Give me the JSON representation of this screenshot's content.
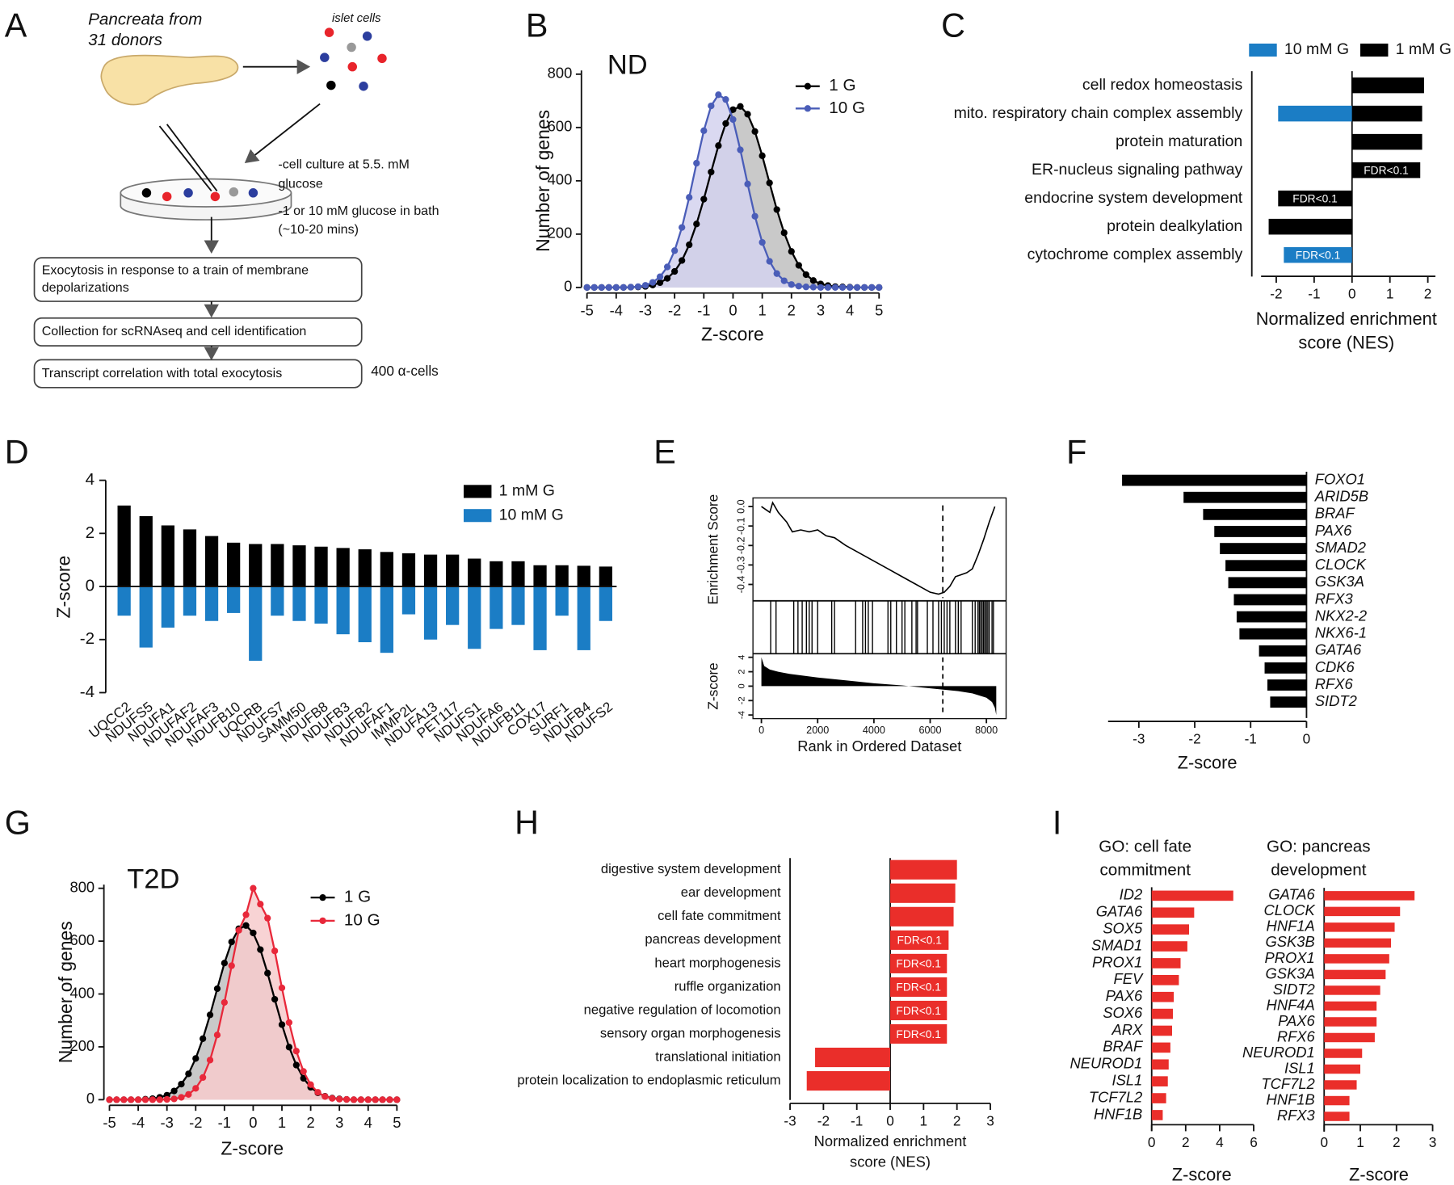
{
  "diagram": {
    "panel": "A",
    "source_lines": [
      "Pancreata from",
      "31 donors"
    ],
    "islet_label": "islet cells",
    "culture_lines": [
      "-cell culture at 5.5. mM",
      "glucose"
    ],
    "bath_lines": [
      "-1 or 10 mM glucose in bath",
      "(~10-20 mins)"
    ],
    "steps": [
      [
        "Exocytosis in response to a train of membrane",
        "depolarizations"
      ],
      [
        "Collection for scRNAseq and cell identification"
      ],
      [
        "Transcript correlation with total exocytosis"
      ]
    ],
    "cell_count": "400 α-cells"
  },
  "chart_data": [
    {
      "type": "line",
      "panel": "B",
      "title": "ND",
      "xlabel": "Z-score",
      "ylabel": "Number of genes",
      "xlim": [
        -5,
        5
      ],
      "xticks": [
        -5,
        -4,
        -3,
        -2,
        -1,
        0,
        1,
        2,
        3,
        4,
        5
      ],
      "ylim": [
        0,
        800
      ],
      "yticks": [
        0,
        200,
        400,
        600,
        800
      ],
      "x": [
        -5,
        -4.75,
        -4.5,
        -4.25,
        -4,
        -3.75,
        -3.5,
        -3.25,
        -3,
        -2.75,
        -2.5,
        -2.25,
        -2,
        -1.75,
        -1.5,
        -1.25,
        -1,
        -0.75,
        -0.5,
        -0.25,
        0,
        0.25,
        0.5,
        0.75,
        1,
        1.25,
        1.5,
        1.75,
        2,
        2.25,
        2.5,
        2.75,
        3,
        3.25,
        3.5,
        3.75,
        4,
        4.25,
        4.5,
        4.75,
        5
      ],
      "series": [
        {
          "name": "1 G",
          "color": "#000000",
          "area_color": "#c9c9c9",
          "values": [
            0,
            0,
            0,
            0,
            0,
            0,
            1,
            2,
            4,
            9,
            18,
            34,
            60,
            101,
            160,
            238,
            331,
            433,
            532,
            615,
            667,
            679,
            650,
            585,
            494,
            392,
            292,
            205,
            135,
            83,
            48,
            26,
            13,
            7,
            3,
            2,
            1,
            0,
            0,
            0,
            0
          ]
        },
        {
          "name": "10 G",
          "color": "#4a5db8",
          "area_color": "#d4d2ee",
          "values": [
            0,
            0,
            0,
            0,
            0,
            0,
            1,
            3,
            8,
            19,
            40,
            77,
            138,
            225,
            338,
            466,
            588,
            681,
            723,
            705,
            630,
            516,
            388,
            267,
            169,
            98,
            52,
            25,
            11,
            5,
            2,
            1,
            0,
            0,
            0,
            0,
            0,
            0,
            0,
            0,
            0
          ]
        }
      ]
    },
    {
      "type": "bar",
      "orientation": "horizontal",
      "panel": "C",
      "xlabel": [
        "Normalized enrichment",
        "score (NES)"
      ],
      "xlim": [
        -2.4,
        2.2
      ],
      "xticks": [
        -2,
        -1,
        0,
        1,
        2
      ],
      "categories": [
        "cell redox homeostasis",
        "mito. respiratory chain complex assembly",
        "protein maturation",
        "ER-nucleus signaling pathway",
        "endocrine system development",
        "protein dealkylation",
        "cytochrome complex assembly"
      ],
      "series": [
        {
          "name": "10 mM G",
          "color": "#1b7dc5",
          "values": [
            null,
            -1.95,
            null,
            null,
            null,
            null,
            -1.8
          ],
          "notes": [
            null,
            null,
            null,
            null,
            null,
            null,
            "FDR<0.1"
          ]
        },
        {
          "name": "1 mM G",
          "color": "#000000",
          "values": [
            1.9,
            1.85,
            1.85,
            1.8,
            -1.95,
            -2.2,
            null
          ],
          "notes": [
            null,
            null,
            null,
            "FDR<0.1",
            "FDR<0.1",
            null,
            null
          ]
        }
      ]
    },
    {
      "type": "bar",
      "orientation": "vertical",
      "panel": "D",
      "ylabel": "Z-score",
      "ylim": [
        -4,
        4
      ],
      "yticks": [
        -4,
        -2,
        0,
        2,
        4
      ],
      "categories": [
        "UQCC2",
        "NDUFS5",
        "NDUFA1",
        "NDUFAF2",
        "NDUFAF3",
        "NDUFB10",
        "UQCRB",
        "NDUFS7",
        "SAMM50",
        "NDUFB8",
        "NDUFB3",
        "NDUFB2",
        "NDUFAF1",
        "IMMP2L",
        "NDUFA13",
        "PET117",
        "NDUFS1",
        "NDUFA6",
        "NDUFB11",
        "COX17",
        "SURF1",
        "NDUFB4",
        "NDUFS2"
      ],
      "series": [
        {
          "name": "1 mM G",
          "color": "#000000",
          "values": [
            3.05,
            2.65,
            2.3,
            2.15,
            1.9,
            1.65,
            1.6,
            1.6,
            1.55,
            1.5,
            1.45,
            1.4,
            1.3,
            1.25,
            1.2,
            1.2,
            1.05,
            0.95,
            0.95,
            0.8,
            0.8,
            0.78,
            0.75
          ]
        },
        {
          "name": "10 mM G",
          "color": "#1b7dc5",
          "values": [
            -1.1,
            -2.3,
            -1.55,
            -1.1,
            -1.3,
            -1.0,
            -2.8,
            -1.1,
            -1.3,
            -1.4,
            -1.8,
            -2.1,
            -2.5,
            -1.05,
            -2.0,
            -1.45,
            -2.35,
            -1.6,
            -1.45,
            -2.4,
            -1.1,
            -2.4,
            -1.3
          ]
        }
      ]
    },
    {
      "type": "gsea",
      "panel": "E",
      "xlabel": "Rank in Ordered Dataset",
      "xlim": [
        -300,
        8700
      ],
      "xticks": [
        0,
        2000,
        4000,
        6000,
        8000
      ],
      "ylabel": "Enrichment Score",
      "ylim": [
        -0.47,
        0.03
      ],
      "yticks": [
        {
          "value": 0,
          "label": "0.0"
        },
        -0.1,
        -0.2,
        -0.3,
        -0.4
      ],
      "x": [
        0,
        300,
        400,
        600,
        900,
        1100,
        1400,
        1700,
        2000,
        2300,
        2600,
        3000,
        3500,
        4000,
        4500,
        5000,
        5500,
        6000,
        6300,
        6500,
        6700,
        6900,
        7100,
        7300,
        7500,
        7700,
        7900,
        8100,
        8300
      ],
      "values": [
        0,
        -0.03,
        0.02,
        -0.03,
        -0.08,
        -0.13,
        -0.12,
        -0.13,
        -0.12,
        -0.15,
        -0.16,
        -0.2,
        -0.24,
        -0.28,
        -0.32,
        -0.36,
        -0.4,
        -0.44,
        -0.45,
        -0.44,
        -0.41,
        -0.36,
        -0.35,
        -0.34,
        -0.32,
        -0.25,
        -0.17,
        -0.08,
        0
      ],
      "marker_x": 6450,
      "hits": [
        330,
        520,
        1150,
        1300,
        1450,
        1600,
        1700,
        1800,
        2000,
        2500,
        2600,
        3350,
        3600,
        3700,
        3800,
        3950,
        4500,
        4600,
        4800,
        5000,
        5100,
        5350,
        5500,
        5550,
        5900,
        6100,
        6300,
        6400,
        6500,
        6600,
        6700,
        6900,
        7000,
        7100,
        7500,
        7600,
        7700,
        7750,
        7800,
        7850,
        7900,
        7950,
        8000,
        8050,
        8100,
        8200,
        8250
      ],
      "rank_ylabel": "Z-score",
      "rank_ylim": [
        -4.5,
        4.5
      ],
      "rank_yticks": [
        4,
        2,
        0,
        -2,
        -4
      ],
      "rank_x": [
        0,
        100,
        300,
        600,
        1000,
        2000,
        3000,
        4000,
        5000,
        6000,
        7000,
        7500,
        8000,
        8200,
        8300,
        8350
      ],
      "rank_values": [
        4,
        2.8,
        2.3,
        2,
        1.7,
        1.2,
        0.8,
        0.4,
        0.1,
        -0.3,
        -0.7,
        -1,
        -1.6,
        -2.2,
        -3,
        -4
      ]
    },
    {
      "type": "bar",
      "orientation": "horizontal",
      "panel": "F",
      "xlabel": "Z-score",
      "xlim": [
        -3.55,
        0
      ],
      "xticks": [
        -3,
        -2,
        -1,
        0
      ],
      "category_style": "italic",
      "color": "#000000",
      "categories": [
        "FOXO1",
        "ARID5B",
        "BRAF",
        "PAX6",
        "SMAD2",
        "CLOCK",
        "GSK3A",
        "RFX3",
        "NKX2-2",
        "NKX6-1",
        "GATA6",
        "CDK6",
        "RFX6",
        "SIDT2"
      ],
      "values": [
        -3.3,
        -2.2,
        -1.85,
        -1.65,
        -1.55,
        -1.45,
        -1.4,
        -1.3,
        -1.25,
        -1.2,
        -0.85,
        -0.75,
        -0.7,
        -0.65
      ]
    },
    {
      "type": "line",
      "panel": "G",
      "title": "T2D",
      "xlabel": "Z-score",
      "ylabel": "Number of genes",
      "xlim": [
        -5,
        5
      ],
      "xticks": [
        -5,
        -4,
        -3,
        -2,
        -1,
        0,
        1,
        2,
        3,
        4,
        5
      ],
      "ylim": [
        0,
        800
      ],
      "yticks": [
        0,
        200,
        400,
        600,
        800
      ],
      "x": [
        -5,
        -4.75,
        -4.5,
        -4.25,
        -4,
        -3.75,
        -3.5,
        -3.25,
        -3,
        -2.75,
        -2.5,
        -2.25,
        -2,
        -1.75,
        -1.5,
        -1.25,
        -1,
        -0.75,
        -0.5,
        -0.25,
        0,
        0.25,
        0.5,
        0.75,
        1,
        1.25,
        1.5,
        1.75,
        2,
        2.25,
        2.5,
        2.75,
        3,
        3.25,
        3.5,
        3.75,
        4,
        4.25,
        4.5,
        4.75,
        5
      ],
      "series": [
        {
          "name": "1 G",
          "color": "#000000",
          "area_color": "#c9c9c9",
          "values": [
            0,
            0,
            0,
            0,
            0,
            2,
            4,
            9,
            17,
            33,
            59,
            98,
            156,
            231,
            321,
            420,
            517,
            597,
            647,
            659,
            631,
            568,
            479,
            380,
            284,
            199,
            131,
            81,
            47,
            26,
            13,
            6,
            3,
            1,
            0,
            0,
            0,
            0,
            0,
            0,
            0
          ]
        },
        {
          "name": "10 G",
          "color": "#e8283a",
          "area_color": "#f7cbcd",
          "values": [
            0,
            0,
            0,
            0,
            0,
            0,
            0,
            0,
            1,
            3,
            9,
            20,
            43,
            84,
            150,
            245,
            368,
            507,
            641,
            700,
            800,
            740,
            687,
            563,
            423,
            292,
            184,
            107,
            57,
            28,
            12,
            5,
            2,
            1,
            0,
            0,
            0,
            0,
            0,
            0,
            0
          ]
        }
      ]
    },
    {
      "type": "bar",
      "orientation": "horizontal",
      "panel": "H",
      "xlabel": [
        "Normalized enrichment",
        "score (NES)"
      ],
      "xlim": [
        -3,
        3
      ],
      "xticks": [
        -3,
        -2,
        -1,
        0,
        1,
        2,
        3
      ],
      "color": "#ea2e2a",
      "categories": [
        "digestive system development",
        "ear development",
        "cell fate commitment",
        "pancreas development",
        "heart morphogenesis",
        "ruffle organization",
        "negative regulation of locomotion",
        "sensory organ morphogenesis",
        "translational initiation",
        "protein localization to endoplasmic reticulum"
      ],
      "values": [
        2.0,
        1.95,
        1.9,
        1.75,
        1.7,
        1.7,
        1.7,
        1.7,
        -2.25,
        -2.5
      ],
      "notes": [
        null,
        null,
        null,
        "FDR<0.1",
        "FDR<0.1",
        "FDR<0.1",
        "FDR<0.1",
        "FDR<0.1",
        null,
        null
      ]
    },
    {
      "type": "bar",
      "orientation": "horizontal",
      "panel": "I",
      "title": [
        "GO: cell fate",
        "commitment"
      ],
      "xlabel": "Z-score",
      "xlim": [
        0,
        6
      ],
      "xticks": [
        0,
        2,
        4,
        6
      ],
      "category_style": "italic",
      "color": "#ea2e2a",
      "categories": [
        "ID2",
        "GATA6",
        "SOX5",
        "SMAD1",
        "PROX1",
        "FEV",
        "PAX6",
        "SOX6",
        "ARX",
        "BRAF",
        "NEUROD1",
        "ISL1",
        "TCF7L2",
        "HNF1B"
      ],
      "values": [
        4.8,
        2.5,
        2.2,
        2.1,
        1.7,
        1.6,
        1.3,
        1.25,
        1.2,
        1.1,
        1.0,
        0.95,
        0.85,
        0.65
      ]
    },
    {
      "type": "bar",
      "orientation": "horizontal",
      "title": [
        "GO: pancreas",
        "development"
      ],
      "xlabel": "Z-score",
      "xlim": [
        0,
        3
      ],
      "xticks": [
        0,
        1,
        2,
        3
      ],
      "category_style": "italic",
      "color": "#ea2e2a",
      "categories": [
        "GATA6",
        "CLOCK",
        "HNF1A",
        "GSK3B",
        "PROX1",
        "GSK3A",
        "SIDT2",
        "HNF4A",
        "PAX6",
        "RFX6",
        "NEUROD1",
        "ISL1",
        "TCF7L2",
        "HNF1B",
        "RFX3"
      ],
      "values": [
        2.5,
        2.1,
        1.95,
        1.85,
        1.8,
        1.7,
        1.55,
        1.45,
        1.45,
        1.4,
        1.05,
        1.0,
        0.9,
        0.7,
        0.7
      ]
    }
  ]
}
